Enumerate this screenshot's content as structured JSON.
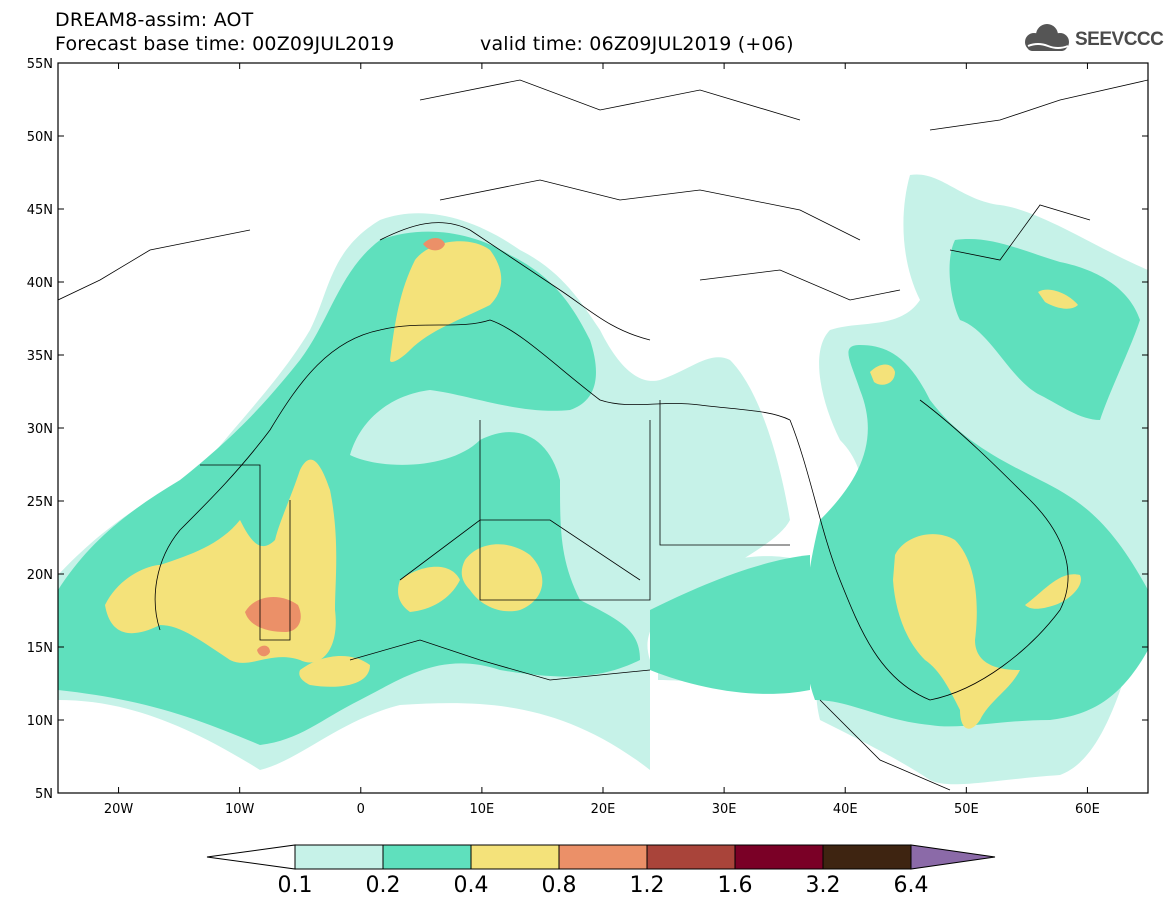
{
  "header": {
    "title": "DREAM8-assim: AOT",
    "base_time": "Forecast base time: 00Z09JUL2019",
    "valid_time": "valid time: 06Z09JUL2019 (+06)",
    "logo_text": "SEEVCCC",
    "logo_icon": "cloud-icon"
  },
  "map": {
    "lon_range": [
      -25,
      65
    ],
    "lat_range": [
      5,
      55
    ],
    "lon_ticks": [
      "20W",
      "10W",
      "0",
      "10E",
      "20E",
      "30E",
      "40E",
      "50E",
      "60E"
    ],
    "lon_tick_values": [
      -20,
      -10,
      0,
      10,
      20,
      30,
      40,
      50,
      60
    ],
    "lat_ticks": [
      "55N",
      "50N",
      "45N",
      "40N",
      "35N",
      "30N",
      "25N",
      "20N",
      "15N",
      "10N",
      "5N"
    ],
    "lat_tick_values": [
      55,
      50,
      45,
      40,
      35,
      30,
      25,
      20,
      15,
      10,
      5
    ]
  },
  "colorbar": {
    "levels": [
      "0.1",
      "0.2",
      "0.4",
      "0.8",
      "1.2",
      "1.6",
      "3.2",
      "6.4"
    ],
    "colors": [
      "#ffffff",
      "#c6f2e8",
      "#5fe0bd",
      "#f4e27a",
      "#eb9068",
      "#a9443a",
      "#7a0026",
      "#3e2411",
      "#8b6aa8"
    ]
  }
}
